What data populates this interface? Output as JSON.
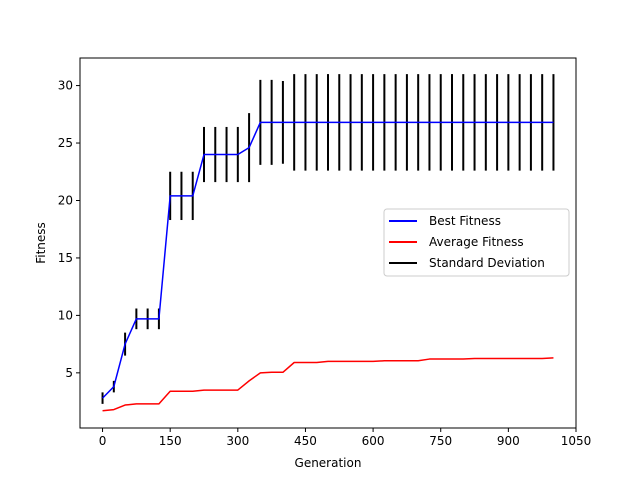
{
  "chart_data": {
    "type": "line",
    "title": "",
    "xlabel": "Generation",
    "ylabel": "Fitness",
    "xlim": [
      -50,
      1050
    ],
    "ylim": [
      0.2,
      32.4
    ],
    "xticks": [
      0,
      150,
      300,
      450,
      600,
      750,
      900,
      1050
    ],
    "yticks": [
      5,
      10,
      15,
      20,
      25,
      30
    ],
    "grid": false,
    "legend_position": "center-right",
    "x": [
      0,
      25,
      50,
      75,
      100,
      125,
      150,
      175,
      200,
      225,
      250,
      275,
      300,
      325,
      350,
      375,
      400,
      425,
      450,
      475,
      500,
      525,
      550,
      575,
      600,
      625,
      650,
      675,
      700,
      725,
      750,
      775,
      800,
      825,
      850,
      875,
      900,
      925,
      950,
      975,
      1000
    ],
    "series": [
      {
        "name": "Best Fitness",
        "color": "#0000ff",
        "values": [
          2.8,
          3.8,
          7.5,
          9.7,
          9.7,
          9.7,
          20.4,
          20.4,
          20.4,
          24.0,
          24.0,
          24.0,
          24.0,
          24.6,
          26.8,
          26.8,
          26.8,
          26.8,
          26.8,
          26.8,
          26.8,
          26.8,
          26.8,
          26.8,
          26.8,
          26.8,
          26.8,
          26.8,
          26.8,
          26.8,
          26.8,
          26.8,
          26.8,
          26.8,
          26.8,
          26.8,
          26.8,
          26.8,
          26.8,
          26.8,
          26.8
        ]
      },
      {
        "name": "Average Fitness",
        "color": "#ff0000",
        "values": [
          1.7,
          1.8,
          2.2,
          2.3,
          2.3,
          2.3,
          3.4,
          3.4,
          3.4,
          3.5,
          3.5,
          3.5,
          3.5,
          4.3,
          5.0,
          5.05,
          5.05,
          5.9,
          5.9,
          5.9,
          6.0,
          6.0,
          6.0,
          6.0,
          6.0,
          6.05,
          6.05,
          6.05,
          6.05,
          6.2,
          6.2,
          6.2,
          6.2,
          6.25,
          6.25,
          6.25,
          6.25,
          6.25,
          6.25,
          6.25,
          6.3
        ]
      },
      {
        "name": "Standard Deviation",
        "color": "#000000",
        "type": "errorbar",
        "values": [
          0.5,
          0.5,
          1.0,
          0.9,
          0.9,
          0.9,
          2.1,
          2.1,
          2.1,
          2.4,
          2.4,
          2.4,
          2.4,
          3.0,
          3.7,
          3.7,
          3.6,
          4.2,
          4.2,
          4.2,
          4.2,
          4.2,
          4.2,
          4.2,
          4.2,
          4.2,
          4.2,
          4.2,
          4.2,
          4.2,
          4.2,
          4.2,
          4.2,
          4.2,
          4.2,
          4.2,
          4.2,
          4.2,
          4.2,
          4.2,
          4.2
        ]
      }
    ]
  }
}
